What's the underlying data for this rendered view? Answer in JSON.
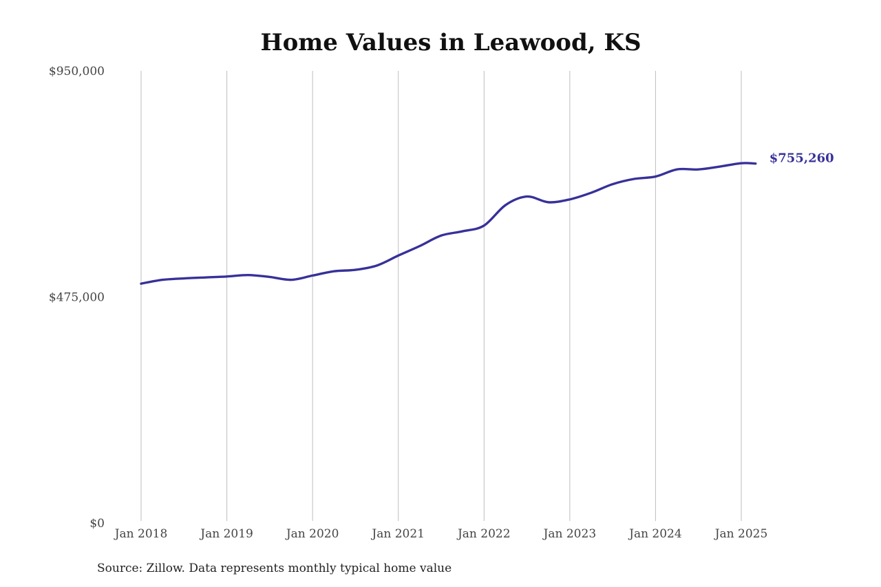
{
  "chart_data": {
    "type": "line",
    "title": "Home Values in Leawood, KS",
    "xlabel": "",
    "ylabel": "",
    "x_ticks": [
      "Jan 2018",
      "Jan 2019",
      "Jan 2020",
      "Jan 2021",
      "Jan 2022",
      "Jan 2023",
      "Jan 2024",
      "Jan 2025"
    ],
    "x_range": [
      "2018-01",
      "2025-03"
    ],
    "y_ticks": [
      {
        "value": 0,
        "label": "$0"
      },
      {
        "value": 475000,
        "label": "$475,000"
      },
      {
        "value": 950000,
        "label": "$950,000"
      }
    ],
    "ylim": [
      0,
      950000
    ],
    "grid": {
      "vertical": true,
      "horizontal": false
    },
    "legend": "none",
    "line_color": "#37319a",
    "end_label": "$755,260",
    "series": [
      {
        "points": [
          [
            "2018-01",
            503000
          ],
          [
            "2018-04",
            511000
          ],
          [
            "2018-07",
            514000
          ],
          [
            "2018-10",
            516000
          ],
          [
            "2019-01",
            518000
          ],
          [
            "2019-04",
            521000
          ],
          [
            "2019-07",
            517000
          ],
          [
            "2019-10",
            511000
          ],
          [
            "2020-01",
            520000
          ],
          [
            "2020-04",
            529000
          ],
          [
            "2020-07",
            532000
          ],
          [
            "2020-10",
            541000
          ],
          [
            "2021-01",
            562000
          ],
          [
            "2021-04",
            582000
          ],
          [
            "2021-07",
            604000
          ],
          [
            "2021-10",
            613000
          ],
          [
            "2022-01",
            625000
          ],
          [
            "2022-04",
            668000
          ],
          [
            "2022-07",
            686000
          ],
          [
            "2022-10",
            674000
          ],
          [
            "2023-01",
            680000
          ],
          [
            "2023-04",
            694000
          ],
          [
            "2023-07",
            712000
          ],
          [
            "2023-10",
            723000
          ],
          [
            "2024-01",
            728000
          ],
          [
            "2024-04",
            743000
          ],
          [
            "2024-07",
            743000
          ],
          [
            "2024-10",
            749000
          ],
          [
            "2025-01",
            756000
          ],
          [
            "2025-03",
            755260
          ]
        ]
      }
    ]
  },
  "footer": {
    "source": "Source: Zillow. Data represents monthly typical home value"
  }
}
